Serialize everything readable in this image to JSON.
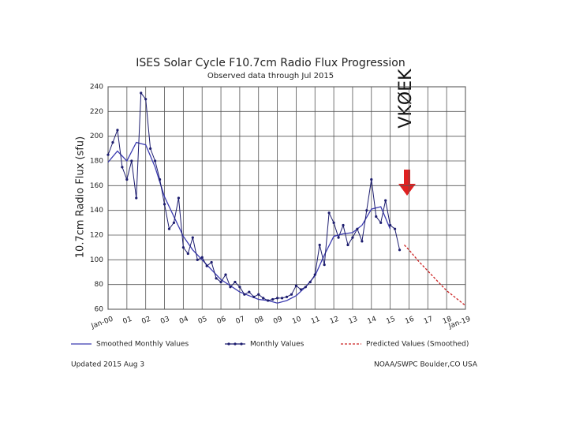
{
  "chart_data": {
    "type": "line",
    "title": "ISES Solar Cycle F10.7cm Radio Flux Progression",
    "subtitle": "Observed data through Jul 2015",
    "y_label": "10.7cm Radio Flux (sfu)",
    "annotation": "VKØEK",
    "footer_left": "Updated 2015 Aug 3",
    "footer_right": "NOAA/SWPC Boulder,CO USA",
    "grid": true,
    "xlim": [
      2000,
      2019
    ],
    "xticks": [
      {
        "value": 2000,
        "label": "Jan-00"
      },
      {
        "value": 2001,
        "label": "01"
      },
      {
        "value": 2002,
        "label": "02"
      },
      {
        "value": 2003,
        "label": "03"
      },
      {
        "value": 2004,
        "label": "04"
      },
      {
        "value": 2005,
        "label": "05"
      },
      {
        "value": 2006,
        "label": "06"
      },
      {
        "value": 2007,
        "label": "07"
      },
      {
        "value": 2008,
        "label": "08"
      },
      {
        "value": 2009,
        "label": "09"
      },
      {
        "value": 2010,
        "label": "10"
      },
      {
        "value": 2011,
        "label": "11"
      },
      {
        "value": 2012,
        "label": "12"
      },
      {
        "value": 2013,
        "label": "13"
      },
      {
        "value": 2014,
        "label": "14"
      },
      {
        "value": 2015,
        "label": "15"
      },
      {
        "value": 2016,
        "label": "16"
      },
      {
        "value": 2017,
        "label": "17"
      },
      {
        "value": 2018,
        "label": "18"
      },
      {
        "value": 2019,
        "label": "Jan-19"
      }
    ],
    "ylim": [
      60,
      240
    ],
    "yticks": [
      60,
      80,
      100,
      120,
      140,
      160,
      180,
      200,
      220,
      240
    ],
    "series": [
      {
        "name": "Smoothed Monthly Values",
        "color": "#3b3bb0",
        "dashed": false,
        "markers": false,
        "x": [
          2000,
          2000.5,
          2001,
          2001.5,
          2002,
          2002.5,
          2003,
          2003.5,
          2004,
          2004.5,
          2005,
          2005.5,
          2006,
          2006.5,
          2007,
          2007.5,
          2008,
          2008.5,
          2009,
          2009.5,
          2010,
          2010.5,
          2011,
          2011.5,
          2012,
          2012.5,
          2013,
          2013.5,
          2014,
          2014.5,
          2015
        ],
        "values": [
          179,
          188,
          180,
          195,
          193,
          175,
          151,
          135,
          119,
          108,
          100,
          92,
          84,
          79,
          74,
          71,
          68,
          67,
          65,
          67,
          71,
          78,
          87,
          104,
          119,
          121,
          122,
          128,
          141,
          143,
          125
        ]
      },
      {
        "name": "Monthly Values",
        "color": "#1c1c6e",
        "dashed": false,
        "markers": true,
        "x": [
          2000,
          2000.25,
          2000.5,
          2000.75,
          2001,
          2001.25,
          2001.5,
          2001.75,
          2002,
          2002.25,
          2002.5,
          2002.75,
          2003,
          2003.25,
          2003.5,
          2003.75,
          2004,
          2004.25,
          2004.5,
          2004.75,
          2005,
          2005.25,
          2005.5,
          2005.75,
          2006,
          2006.25,
          2006.5,
          2006.75,
          2007,
          2007.25,
          2007.5,
          2007.75,
          2008,
          2008.25,
          2008.5,
          2008.75,
          2009,
          2009.25,
          2009.5,
          2009.75,
          2010,
          2010.25,
          2010.5,
          2010.75,
          2011,
          2011.25,
          2011.5,
          2011.75,
          2012,
          2012.25,
          2012.5,
          2012.75,
          2013,
          2013.25,
          2013.5,
          2013.75,
          2014,
          2014.25,
          2014.5,
          2014.75,
          2015,
          2015.25,
          2015.5
        ],
        "values": [
          185,
          195,
          205,
          175,
          165,
          180,
          150,
          235,
          230,
          190,
          180,
          165,
          145,
          125,
          130,
          150,
          110,
          105,
          118,
          100,
          102,
          95,
          98,
          85,
          82,
          88,
          78,
          82,
          78,
          72,
          74,
          70,
          72,
          69,
          67,
          68,
          69,
          69,
          70,
          72,
          79,
          76,
          78,
          82,
          88,
          112,
          96,
          138,
          130,
          118,
          128,
          112,
          118,
          125,
          115,
          140,
          165,
          135,
          130,
          148,
          128,
          125,
          108
        ]
      },
      {
        "name": "Predicted Values (Smoothed)",
        "color": "#cc2222",
        "dashed": true,
        "markers": false,
        "x": [
          2015.75,
          2016,
          2016.5,
          2017,
          2017.5,
          2018,
          2018.5,
          2019
        ],
        "values": [
          112,
          108,
          99,
          91,
          83,
          75,
          69,
          63
        ]
      }
    ]
  }
}
